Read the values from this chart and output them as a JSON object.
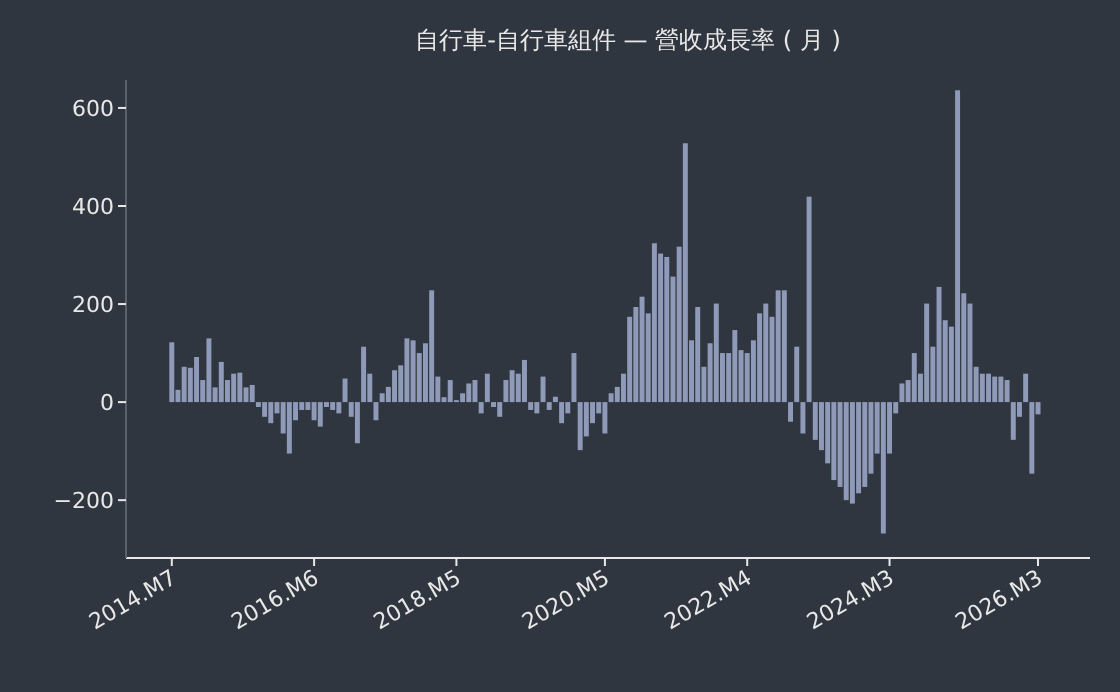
{
  "chart_data": {
    "type": "bar",
    "title": "自行車-自行車組件 — 營收成長率 ( 月 )",
    "categories": [
      "2014.M7",
      null,
      null,
      null,
      null,
      null,
      null,
      null,
      null,
      null,
      null,
      null,
      null,
      null,
      null,
      null,
      null,
      null,
      null,
      null,
      null,
      null,
      null,
      "2016.M6",
      null,
      null,
      null,
      null,
      null,
      null,
      null,
      null,
      null,
      null,
      null,
      null,
      null,
      null,
      null,
      null,
      null,
      null,
      null,
      null,
      null,
      null,
      "2018.M5",
      null,
      null,
      null,
      null,
      null,
      null,
      null,
      null,
      null,
      null,
      null,
      null,
      null,
      null,
      null,
      null,
      null,
      null,
      null,
      null,
      null,
      null,
      null,
      "2020.M5",
      null,
      null,
      null,
      null,
      null,
      null,
      null,
      null,
      null,
      null,
      null,
      null,
      null,
      null,
      null,
      null,
      null,
      null,
      null,
      null,
      null,
      null,
      "2022.M4",
      null,
      null,
      null,
      null,
      null,
      null,
      null,
      null,
      null,
      null,
      null,
      null,
      null,
      null,
      null,
      null,
      null,
      null,
      null,
      null,
      null,
      null,
      "2024.M3",
      null,
      null,
      null,
      null,
      null,
      null,
      null,
      null,
      null,
      null,
      null,
      null,
      null,
      null,
      null,
      null,
      null,
      null,
      null,
      null,
      null,
      null,
      null,
      "2026.M3"
    ],
    "series": [
      {
        "color": "#8e9ab8",
        "values": [
          122,
          25,
          72,
          70,
          92,
          45,
          130,
          30,
          82,
          45,
          58,
          60,
          30,
          35,
          -10,
          -30,
          -43,
          -23,
          -64,
          -105,
          -37,
          -16,
          -16,
          -37,
          -50,
          -10,
          -16,
          -23,
          48,
          -30,
          -84,
          113,
          58,
          -37,
          18,
          31,
          65,
          75,
          130,
          126,
          100,
          120,
          228,
          52,
          10,
          45,
          4,
          18,
          38,
          45,
          -23,
          58,
          -10,
          -30,
          45,
          65,
          58,
          86,
          -16,
          -23,
          52,
          -16,
          11,
          -43,
          -23,
          100,
          -98,
          -70,
          -43,
          -23,
          -64,
          18,
          31,
          58,
          174,
          194,
          215,
          181,
          324,
          303,
          296,
          256,
          317,
          528,
          126,
          194,
          72,
          120,
          201,
          100,
          100,
          147,
          106,
          100,
          126,
          181,
          201,
          174,
          228,
          228,
          -40,
          113,
          -64,
          419,
          -77,
          -98,
          -125,
          -159,
          -173,
          -200,
          -207,
          -186,
          -173,
          -146,
          -105,
          -268,
          -105,
          -23,
          38,
          45,
          100,
          58,
          201,
          113,
          235,
          167,
          154,
          636,
          222,
          201,
          72,
          58,
          58,
          52,
          52,
          45,
          -77,
          -30,
          58,
          -146,
          -25
        ]
      }
    ],
    "ylim": [
      -318,
      657
    ],
    "yticks": [
      -200,
      0,
      200,
      400,
      600
    ]
  }
}
